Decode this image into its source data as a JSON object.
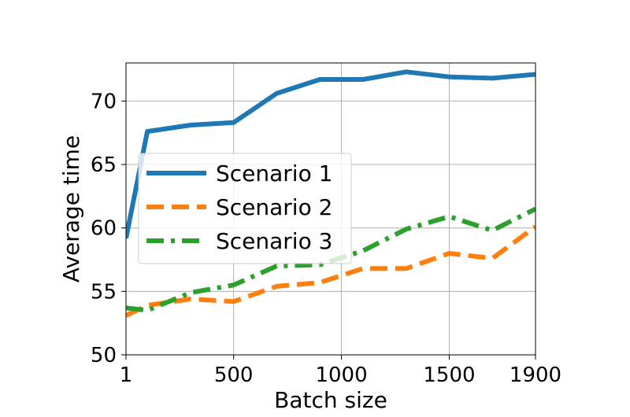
{
  "chart_data": {
    "type": "line",
    "title": "",
    "xlabel": "Batch size",
    "ylabel": "Average time",
    "xlim": [
      1,
      1900
    ],
    "ylim": [
      50,
      73
    ],
    "xticks": [
      1,
      500,
      1000,
      1500,
      1900
    ],
    "xtick_labels": [
      "1",
      "500",
      "1000",
      "1500",
      "1900"
    ],
    "yticks": [
      50,
      55,
      60,
      65,
      70
    ],
    "ytick_labels": [
      "50",
      "55",
      "60",
      "65",
      "70"
    ],
    "grid": true,
    "legend_position": "center-left",
    "x": [
      1,
      100,
      300,
      500,
      700,
      900,
      1100,
      1300,
      1500,
      1700,
      1900
    ],
    "series": [
      {
        "name": "Scenario 1",
        "color": "#1f77b4",
        "dash": "solid",
        "values": [
          59.2,
          67.6,
          68.1,
          68.3,
          70.6,
          71.7,
          71.7,
          72.3,
          71.9,
          71.8,
          72.1
        ]
      },
      {
        "name": "Scenario 2",
        "color": "#ff7f0e",
        "dash": "dashed",
        "values": [
          53.1,
          53.9,
          54.4,
          54.2,
          55.4,
          55.7,
          56.8,
          56.8,
          58.0,
          57.6,
          60.1
        ]
      },
      {
        "name": "Scenario 3",
        "color": "#2ca02c",
        "dash": "dashdot",
        "values": [
          53.7,
          53.5,
          54.9,
          55.5,
          57.0,
          57.1,
          58.2,
          59.9,
          60.9,
          59.8,
          61.5
        ]
      }
    ]
  }
}
